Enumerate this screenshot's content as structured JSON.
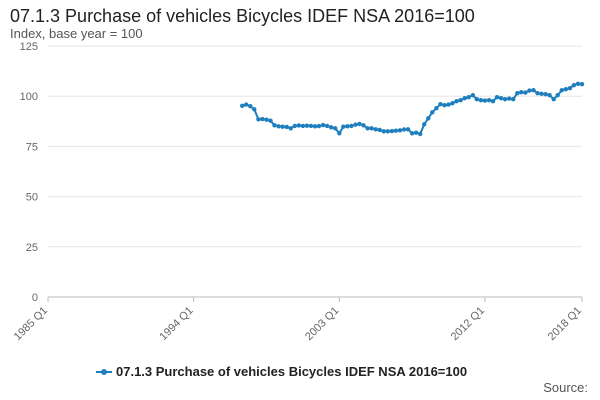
{
  "chart_data": {
    "type": "line",
    "title": "07.1.3 Purchase of vehicles Bicycles IDEF NSA 2016=100",
    "ylabel": "Index, base year = 100",
    "xlabel": "",
    "ylim": [
      0,
      125
    ],
    "yticks": [
      0,
      25,
      50,
      75,
      100,
      125
    ],
    "xrange": [
      "1985 Q1",
      "2018 Q1"
    ],
    "xticks": [
      "1985 Q1",
      "1994 Q1",
      "2003 Q1",
      "2012 Q1",
      "2018 Q1"
    ],
    "grid": "horizontal",
    "legend_position": "bottom",
    "color": "#1f7fbe",
    "source_label": "Source:",
    "series": [
      {
        "name": "07.1.3 Purchase of vehicles Bicycles IDEF NSA 2016=100",
        "x": [
          "1997 Q1",
          "1997 Q2",
          "1997 Q3",
          "1997 Q4",
          "1998 Q1",
          "1998 Q2",
          "1998 Q3",
          "1998 Q4",
          "1999 Q1",
          "1999 Q2",
          "1999 Q3",
          "1999 Q4",
          "2000 Q1",
          "2000 Q2",
          "2000 Q3",
          "2000 Q4",
          "2001 Q1",
          "2001 Q2",
          "2001 Q3",
          "2001 Q4",
          "2002 Q1",
          "2002 Q2",
          "2002 Q3",
          "2002 Q4",
          "2003 Q1",
          "2003 Q2",
          "2003 Q3",
          "2003 Q4",
          "2004 Q1",
          "2004 Q2",
          "2004 Q3",
          "2004 Q4",
          "2005 Q1",
          "2005 Q2",
          "2005 Q3",
          "2005 Q4",
          "2006 Q1",
          "2006 Q2",
          "2006 Q3",
          "2006 Q4",
          "2007 Q1",
          "2007 Q2",
          "2007 Q3",
          "2007 Q4",
          "2008 Q1",
          "2008 Q2",
          "2008 Q3",
          "2008 Q4",
          "2009 Q1",
          "2009 Q2",
          "2009 Q3",
          "2009 Q4",
          "2010 Q1",
          "2010 Q2",
          "2010 Q3",
          "2010 Q4",
          "2011 Q1",
          "2011 Q2",
          "2011 Q3",
          "2011 Q4",
          "2012 Q1",
          "2012 Q2",
          "2012 Q3",
          "2012 Q4",
          "2013 Q1",
          "2013 Q2",
          "2013 Q3",
          "2013 Q4",
          "2014 Q1",
          "2014 Q2",
          "2014 Q3",
          "2014 Q4",
          "2015 Q1",
          "2015 Q2",
          "2015 Q3",
          "2015 Q4",
          "2016 Q1",
          "2016 Q2",
          "2016 Q3",
          "2016 Q4",
          "2017 Q1",
          "2017 Q2",
          "2017 Q3",
          "2017 Q4",
          "2018 Q1"
        ],
        "values": [
          95.2,
          95.8,
          95.0,
          93.5,
          88.5,
          88.6,
          88.3,
          87.8,
          85.5,
          85.0,
          84.8,
          84.7,
          84.0,
          85.2,
          85.4,
          85.2,
          85.3,
          85.2,
          85.0,
          85.1,
          85.6,
          85.2,
          84.5,
          84.0,
          81.5,
          84.8,
          85.0,
          85.2,
          85.8,
          86.2,
          85.5,
          84.0,
          84.0,
          83.5,
          83.2,
          82.5,
          82.5,
          82.6,
          82.8,
          83.0,
          83.4,
          83.5,
          81.5,
          81.8,
          81.2,
          86.0,
          89.0,
          92.0,
          94.0,
          96.0,
          95.5,
          95.8,
          96.5,
          97.5,
          98.0,
          99.0,
          99.5,
          100.5,
          98.5,
          98.0,
          97.8,
          98.0,
          97.5,
          99.5,
          99.0,
          98.5,
          98.8,
          98.5,
          101.5,
          102.0,
          101.8,
          102.8,
          103.0,
          101.5,
          101.2,
          101.0,
          100.5,
          98.5,
          100.5,
          103.0,
          103.5,
          104.0,
          105.5,
          106.2,
          106.0
        ]
      }
    ]
  }
}
